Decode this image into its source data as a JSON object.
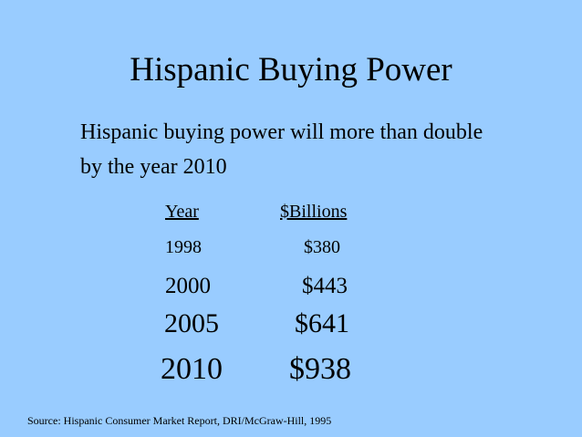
{
  "title": "Hispanic Buying Power",
  "subtitle": "Hispanic buying power will more than double by the year 2010",
  "table": {
    "header": [
      "Year",
      "$Billions"
    ],
    "rows": [
      [
        "1998",
        "$380"
      ],
      [
        "2000",
        "$443"
      ],
      [
        "2005",
        "$641"
      ],
      [
        "2010",
        "$938"
      ]
    ]
  },
  "source": "Source:  Hispanic Consumer Market Report, DRI/McGraw-Hill, 1995"
}
